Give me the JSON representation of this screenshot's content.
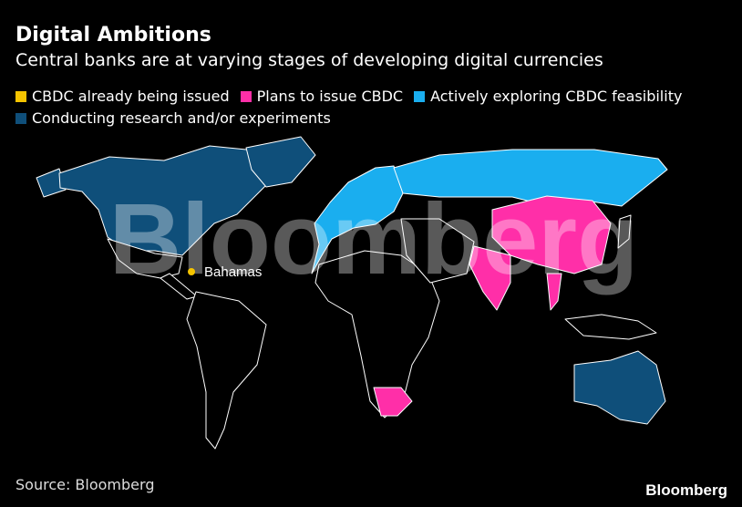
{
  "header": {
    "title": "Digital Ambitions",
    "subtitle": "Central banks are at varying stages of developing digital currencies"
  },
  "legend": {
    "items": [
      {
        "label": "CBDC already being issued",
        "color": "#f5c400"
      },
      {
        "label": "Plans to issue CBDC",
        "color": "#ff2fa8"
      },
      {
        "label": "Actively exploring CBDC feasibility",
        "color": "#1aaeef"
      },
      {
        "label": "Conducting research and/or experiments",
        "color": "#0f4f7a"
      }
    ]
  },
  "map": {
    "annotation": "Bahamas",
    "watermark": "Bloomberg"
  },
  "footer": {
    "source": "Source: Bloomberg",
    "logo": "Bloomberg"
  }
}
